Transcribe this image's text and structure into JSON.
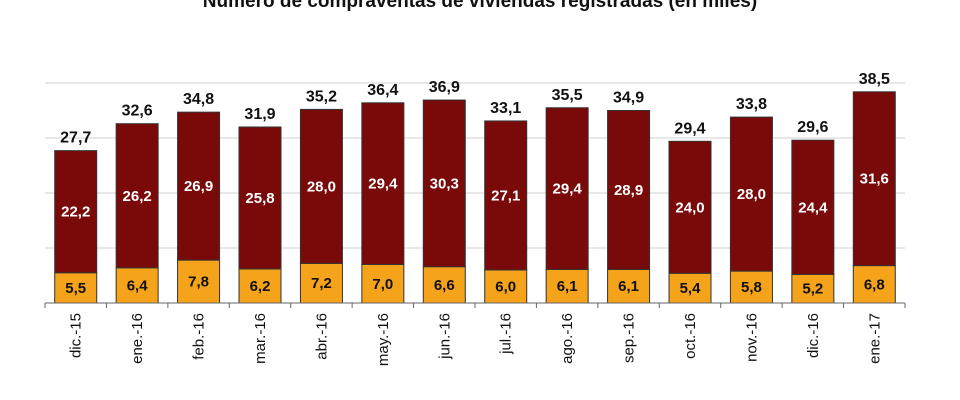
{
  "chart_data": {
    "type": "bar",
    "stacked": true,
    "title": "Número de compraventas de viviendas registradas (en miles)",
    "categories": [
      "dic.-15",
      "ene.-16",
      "feb.-16",
      "mar.-16",
      "abr.-16",
      "may.-16",
      "jun.-16",
      "jul.-16",
      "ago.-16",
      "sep.-16",
      "oct.-16",
      "nov.-16",
      "dic.-16",
      "ene.-17"
    ],
    "series": [
      {
        "values": [
          5.5,
          6.4,
          7.8,
          6.2,
          7.2,
          7.0,
          6.6,
          6.0,
          6.1,
          6.1,
          5.4,
          5.8,
          5.2,
          6.8
        ],
        "labels": [
          "5,5",
          "6,4",
          "7,8",
          "6,2",
          "7,2",
          "7,0",
          "6,6",
          "6,0",
          "6,1",
          "6,1",
          "5,4",
          "5,8",
          "5,2",
          "6,8"
        ],
        "color": "#f5a31a"
      },
      {
        "values": [
          22.2,
          26.2,
          26.9,
          25.8,
          28.0,
          29.4,
          30.3,
          27.1,
          29.4,
          28.9,
          24.0,
          28.0,
          24.4,
          31.6
        ],
        "labels": [
          "22,2",
          "26,2",
          "26,9",
          "25,8",
          "28,0",
          "29,4",
          "30,3",
          "27,1",
          "29,4",
          "28,9",
          "24,0",
          "28,0",
          "24,4",
          "31,6"
        ],
        "color": "#7a0a0a"
      }
    ],
    "totals": [
      27.7,
      32.6,
      34.8,
      31.9,
      35.2,
      36.4,
      36.9,
      33.1,
      35.5,
      34.9,
      29.4,
      33.8,
      29.6,
      38.5
    ],
    "total_labels": [
      "27,7",
      "32,6",
      "34,8",
      "31,9",
      "35,2",
      "36,4",
      "36,9",
      "33,1",
      "35,5",
      "34,9",
      "29,4",
      "33,8",
      "29,6",
      "38,5"
    ],
    "ylim": [
      0,
      40
    ],
    "grid": true,
    "xlabel": "",
    "ylabel": ""
  }
}
